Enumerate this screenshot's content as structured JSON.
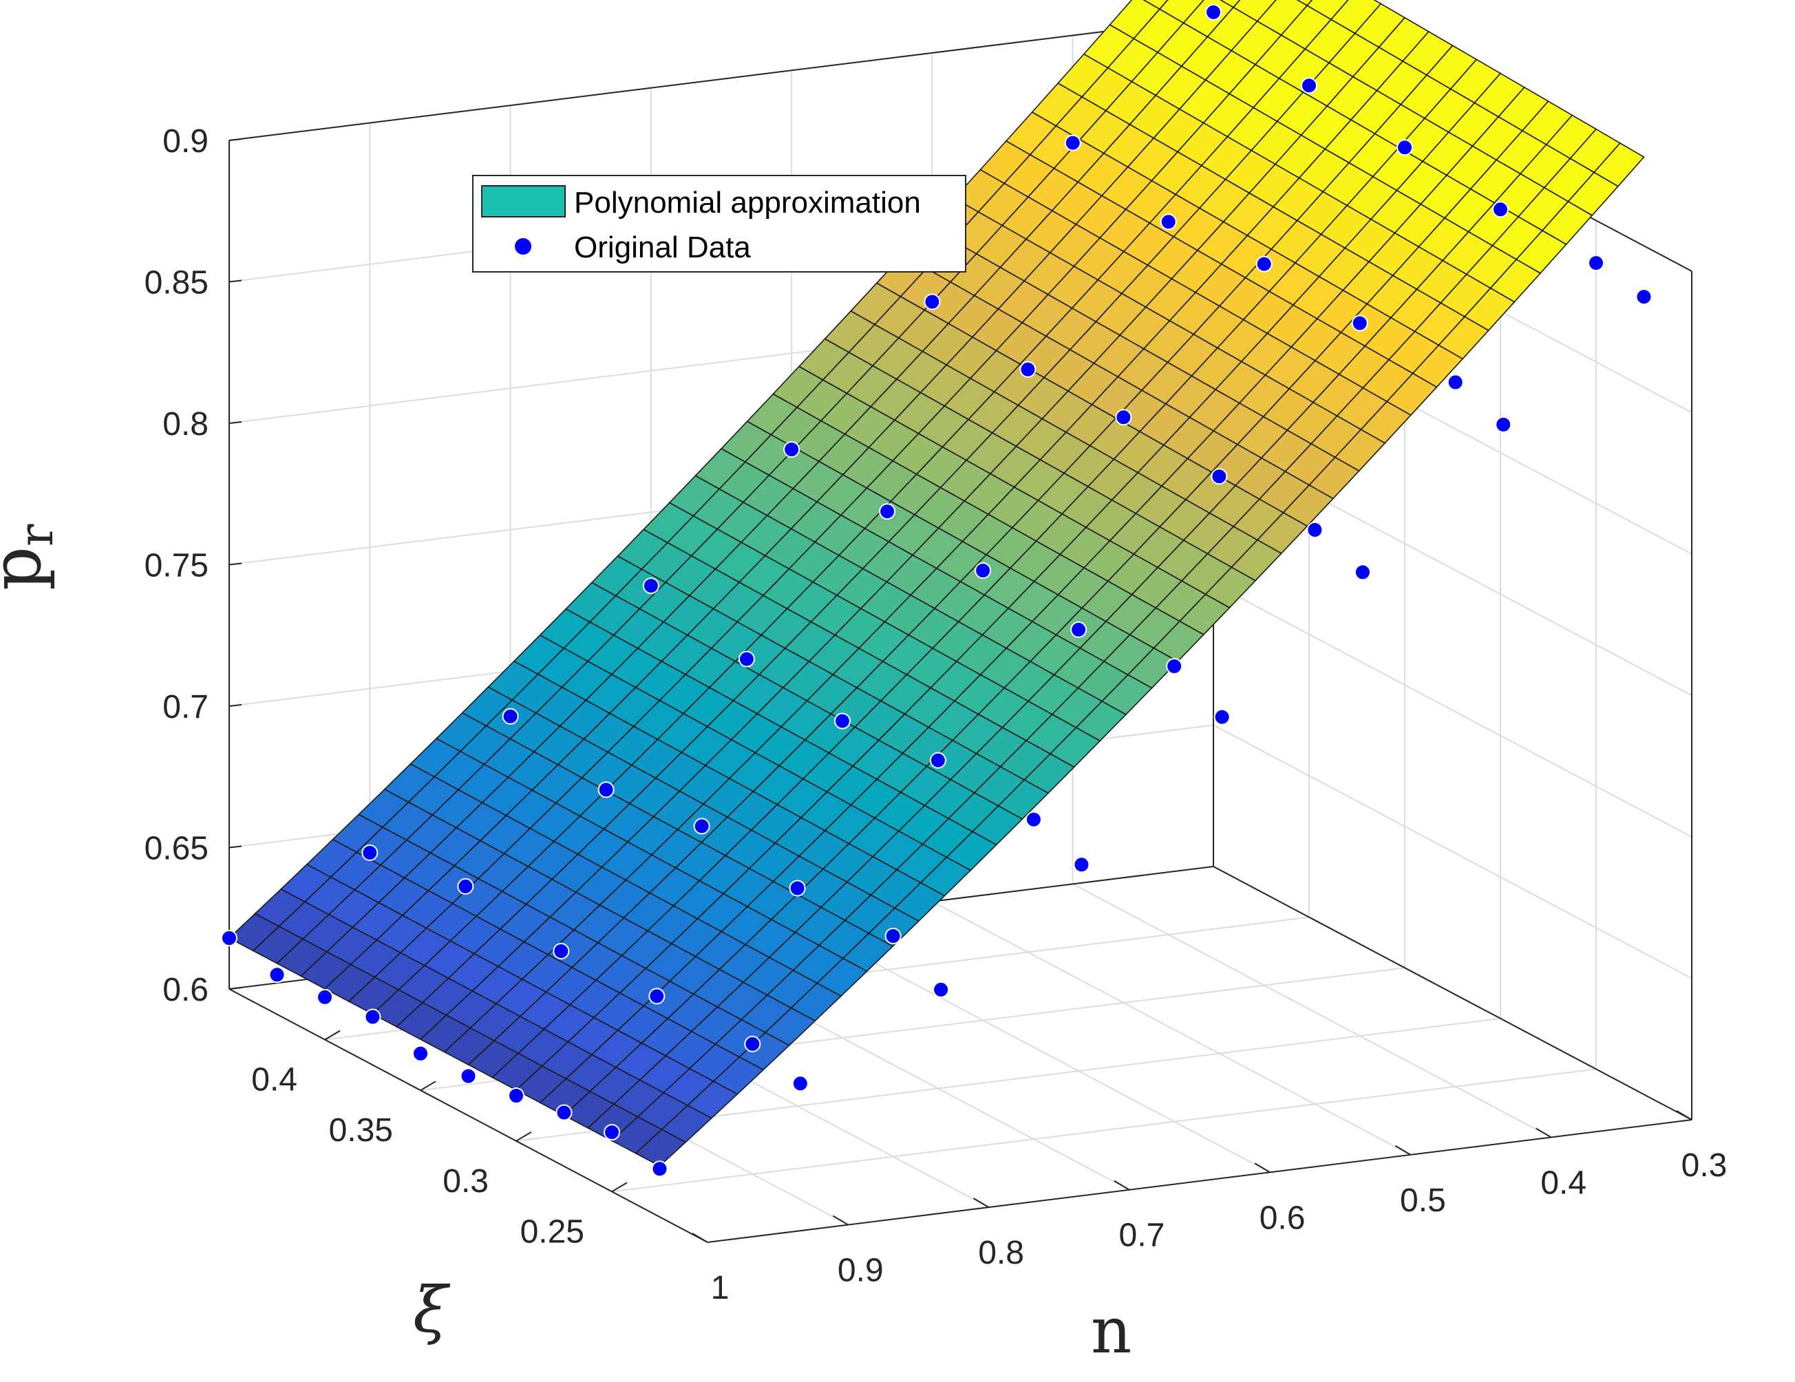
{
  "chart_data": {
    "type": "surface3d",
    "title": "",
    "xlabel": "n",
    "ylabel": "ξ",
    "zlabel": "p",
    "zlabel_subscript": "r",
    "x_ticks": [
      "1",
      "0.9",
      "0.8",
      "0.7",
      "0.6",
      "0.5",
      "0.4",
      "0.3"
    ],
    "y_ticks": [
      "0.4",
      "0.35",
      "0.3",
      "0.25"
    ],
    "z_ticks": [
      "0.9",
      "0.85",
      "0.8",
      "0.75",
      "0.7",
      "0.65",
      "0.6"
    ],
    "xlim": [
      0.3,
      1.0
    ],
    "ylim": [
      0.2,
      0.45
    ],
    "zlim": [
      0.6,
      0.9
    ],
    "grid": true,
    "legend": {
      "placement": "top-left",
      "entries": [
        {
          "label": "Polynomial approximation",
          "type": "surface"
        },
        {
          "label": "Original Data",
          "type": "marker"
        }
      ]
    },
    "series": [
      {
        "name": "Polynomial approximation",
        "type": "surface",
        "colormap": "parula"
      },
      {
        "name": "Original Data",
        "type": "scatter",
        "color": "#0000ff",
        "points": [
          {
            "n": 1.0,
            "xi": 0.45,
            "p": 0.618
          },
          {
            "n": 1.0,
            "xi": 0.425,
            "p": 0.614
          },
          {
            "n": 1.0,
            "xi": 0.4,
            "p": 0.615
          },
          {
            "n": 1.0,
            "xi": 0.375,
            "p": 0.617
          },
          {
            "n": 1.0,
            "xi": 0.35,
            "p": 0.613
          },
          {
            "n": 1.0,
            "xi": 0.325,
            "p": 0.614
          },
          {
            "n": 1.0,
            "xi": 0.3,
            "p": 0.616
          },
          {
            "n": 1.0,
            "xi": 0.275,
            "p": 0.619
          },
          {
            "n": 1.0,
            "xi": 0.25,
            "p": 0.621
          },
          {
            "n": 1.0,
            "xi": 0.225,
            "p": 0.617
          },
          {
            "n": 0.9,
            "xi": 0.45,
            "p": 0.642
          },
          {
            "n": 0.9,
            "xi": 0.4,
            "p": 0.648
          },
          {
            "n": 0.9,
            "xi": 0.35,
            "p": 0.643
          },
          {
            "n": 0.9,
            "xi": 0.3,
            "p": 0.645
          },
          {
            "n": 0.9,
            "xi": 0.25,
            "p": 0.646
          },
          {
            "n": 0.9,
            "xi": 0.225,
            "p": 0.641
          },
          {
            "n": 0.8,
            "xi": 0.45,
            "p": 0.684
          },
          {
            "n": 0.8,
            "xi": 0.4,
            "p": 0.676
          },
          {
            "n": 0.8,
            "xi": 0.35,
            "p": 0.681
          },
          {
            "n": 0.8,
            "xi": 0.3,
            "p": 0.677
          },
          {
            "n": 0.8,
            "xi": 0.25,
            "p": 0.678
          },
          {
            "n": 0.8,
            "xi": 0.225,
            "p": 0.668
          },
          {
            "n": 0.7,
            "xi": 0.45,
            "p": 0.724
          },
          {
            "n": 0.7,
            "xi": 0.4,
            "p": 0.716
          },
          {
            "n": 0.7,
            "xi": 0.35,
            "p": 0.712
          },
          {
            "n": 0.7,
            "xi": 0.3,
            "p": 0.716
          },
          {
            "n": 0.7,
            "xi": 0.25,
            "p": 0.713
          },
          {
            "n": 0.7,
            "xi": 0.225,
            "p": 0.706
          },
          {
            "n": 0.6,
            "xi": 0.45,
            "p": 0.766
          },
          {
            "n": 0.6,
            "xi": 0.4,
            "p": 0.762
          },
          {
            "n": 0.6,
            "xi": 0.35,
            "p": 0.759
          },
          {
            "n": 0.6,
            "xi": 0.3,
            "p": 0.756
          },
          {
            "n": 0.6,
            "xi": 0.25,
            "p": 0.761
          },
          {
            "n": 0.6,
            "xi": 0.225,
            "p": 0.752
          },
          {
            "n": 0.5,
            "xi": 0.45,
            "p": 0.812
          },
          {
            "n": 0.5,
            "xi": 0.4,
            "p": 0.806
          },
          {
            "n": 0.5,
            "xi": 0.35,
            "p": 0.807
          },
          {
            "n": 0.5,
            "xi": 0.3,
            "p": 0.804
          },
          {
            "n": 0.5,
            "xi": 0.25,
            "p": 0.803
          },
          {
            "n": 0.5,
            "xi": 0.225,
            "p": 0.797
          },
          {
            "n": 0.4,
            "xi": 0.45,
            "p": 0.862
          },
          {
            "n": 0.4,
            "xi": 0.4,
            "p": 0.852
          },
          {
            "n": 0.4,
            "xi": 0.35,
            "p": 0.855
          },
          {
            "n": 0.4,
            "xi": 0.3,
            "p": 0.852
          },
          {
            "n": 0.4,
            "xi": 0.25,
            "p": 0.849
          },
          {
            "n": 0.4,
            "xi": 0.225,
            "p": 0.843
          },
          {
            "n": 0.3,
            "xi": 0.45,
            "p": 0.902
          },
          {
            "n": 0.3,
            "xi": 0.4,
            "p": 0.894
          },
          {
            "n": 0.3,
            "xi": 0.35,
            "p": 0.89
          },
          {
            "n": 0.3,
            "xi": 0.3,
            "p": 0.886
          },
          {
            "n": 0.3,
            "xi": 0.25,
            "p": 0.885
          },
          {
            "n": 0.3,
            "xi": 0.225,
            "p": 0.882
          }
        ]
      }
    ]
  }
}
